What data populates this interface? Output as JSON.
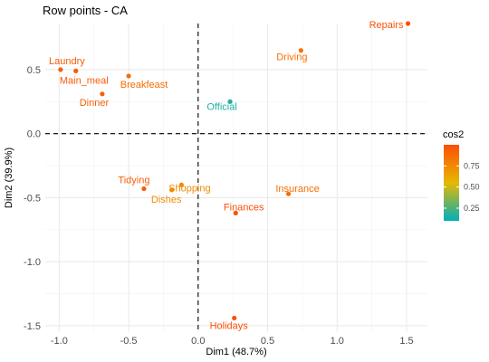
{
  "chart_data": {
    "type": "scatter",
    "title": "Row points - CA",
    "xlabel": "Dim1 (48.7%)",
    "ylabel": "Dim2 (39.9%)",
    "xlim": [
      -1.1,
      1.65
    ],
    "ylim": [
      -1.55,
      0.86
    ],
    "xticks": [
      -1.0,
      -0.5,
      0.0,
      0.5,
      1.0,
      1.5
    ],
    "xtick_labels": [
      "-1.0",
      "-0.5",
      "0.0",
      "0.5",
      "1.0",
      "1.5"
    ],
    "yticks": [
      -1.5,
      -1.0,
      -0.5,
      0.0,
      0.5
    ],
    "ytick_labels": [
      "-1.5",
      "-1.0",
      "-0.5",
      "0.0",
      "0.5"
    ],
    "grid": true,
    "reference_lines": {
      "x": 0,
      "y": 0,
      "style": "dashed"
    },
    "points": [
      {
        "label": "Laundry",
        "x": -0.99,
        "y": 0.5,
        "cos2": 0.95
      },
      {
        "label": "Main_meal",
        "x": -0.88,
        "y": 0.49,
        "cos2": 0.95
      },
      {
        "label": "Dinner",
        "x": -0.69,
        "y": 0.31,
        "cos2": 0.93
      },
      {
        "label": "Breakfeast",
        "x": -0.5,
        "y": 0.45,
        "cos2": 0.87
      },
      {
        "label": "Tidying",
        "x": -0.39,
        "y": -0.43,
        "cos2": 0.93
      },
      {
        "label": "Dishes",
        "x": -0.19,
        "y": -0.44,
        "cos2": 0.73
      },
      {
        "label": "Shopping",
        "x": -0.12,
        "y": -0.4,
        "cos2": 0.74
      },
      {
        "label": "Official",
        "x": 0.23,
        "y": 0.25,
        "cos2": 0.16
      },
      {
        "label": "Driving",
        "x": 0.74,
        "y": 0.65,
        "cos2": 0.85
      },
      {
        "label": "Finances",
        "x": 0.27,
        "y": -0.62,
        "cos2": 0.99
      },
      {
        "label": "Insurance",
        "x": 0.65,
        "y": -0.47,
        "cos2": 0.86
      },
      {
        "label": "Repairs",
        "x": 1.51,
        "y": 0.86,
        "cos2": 0.99
      },
      {
        "label": "Holidays",
        "x": 0.26,
        "y": -1.44,
        "cos2": 0.99
      }
    ],
    "legend": {
      "title": "cos2",
      "placement": "right",
      "ticks": [
        0.25,
        0.5,
        0.75
      ],
      "tick_labels": [
        "0.25",
        "0.50",
        "0.75"
      ],
      "range": [
        0.1,
        1.0
      ],
      "gradient_colors": [
        "#00AFBB",
        "#E7B800",
        "#FC4E07"
      ]
    }
  }
}
